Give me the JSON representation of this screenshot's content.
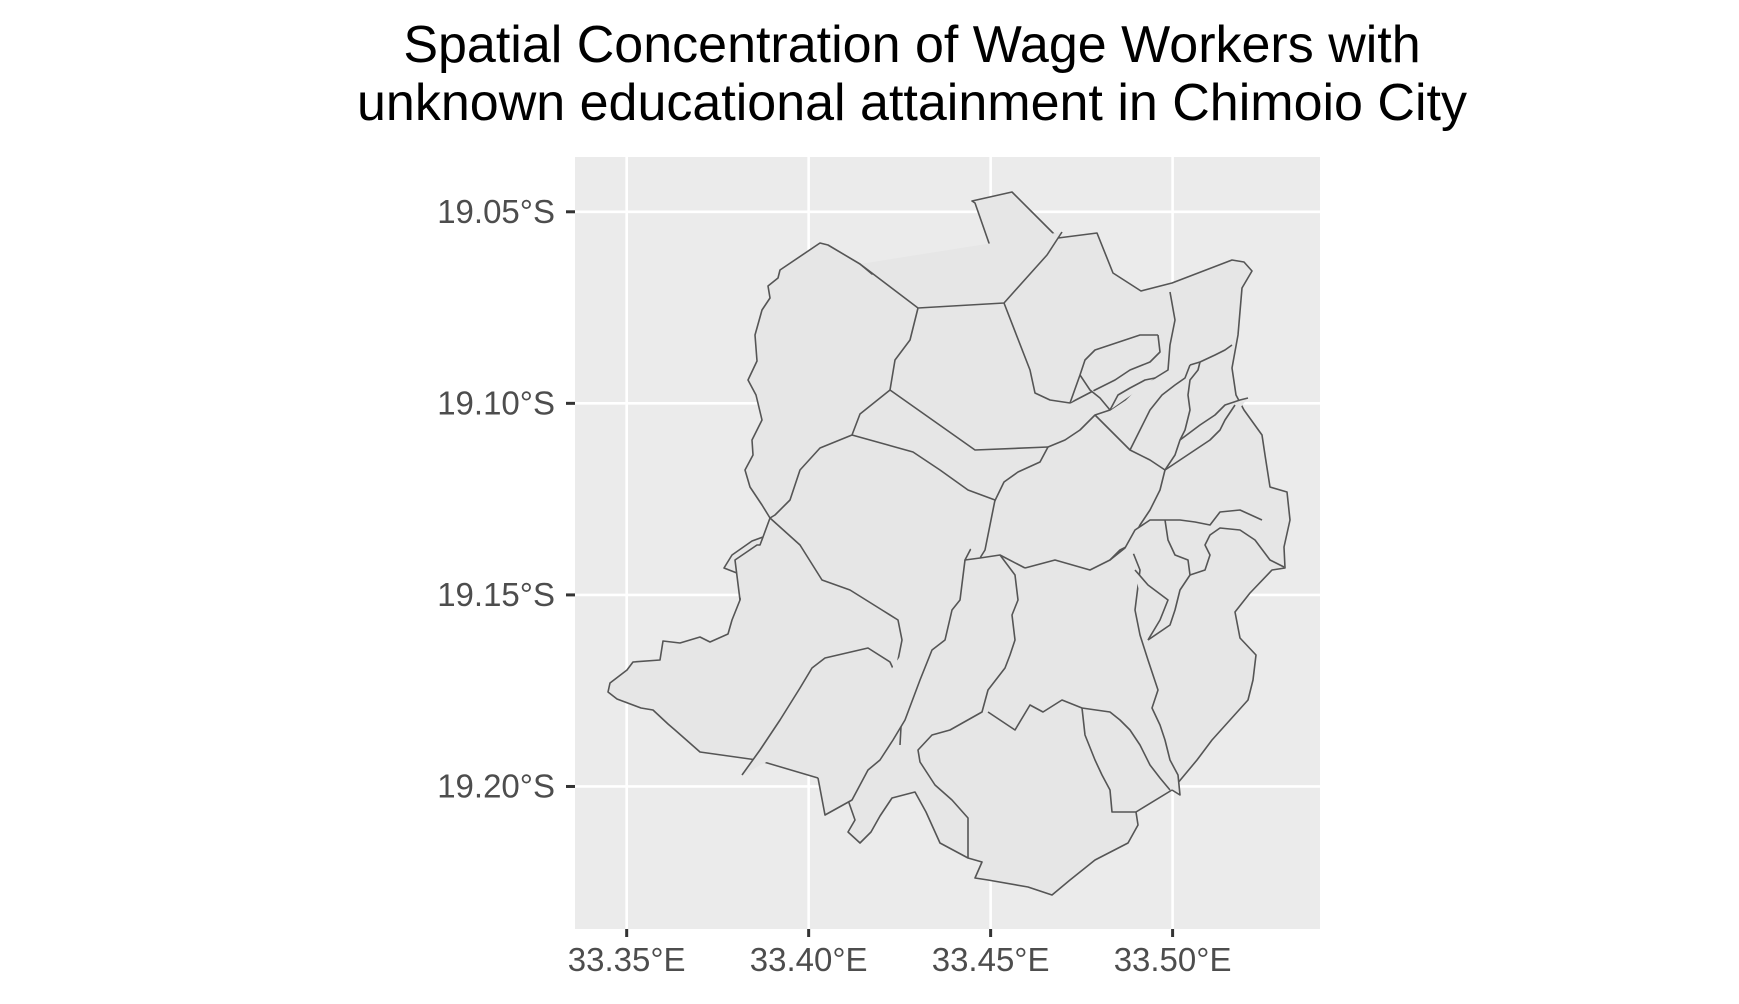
{
  "title_lines": [
    "Spatial Concentration of Wage Workers with",
    "unknown educational attainment in Chimoio City"
  ],
  "chart_data": {
    "type": "map",
    "title": "Spatial Concentration of Wage Workers with unknown educational attainment in Chimoio City",
    "x_ticks": [
      {
        "value": 33.35,
        "label": "33.35°E"
      },
      {
        "value": 33.4,
        "label": "33.40°E"
      },
      {
        "value": 33.45,
        "label": "33.45°E"
      },
      {
        "value": 33.5,
        "label": "33.50°E"
      }
    ],
    "y_ticks": [
      {
        "value": -19.05,
        "label": "19.05°S"
      },
      {
        "value": -19.1,
        "label": "19.10°S"
      },
      {
        "value": -19.15,
        "label": "19.15°S"
      },
      {
        "value": -19.2,
        "label": "19.20°S"
      }
    ],
    "xlim": [
      33.3358,
      33.5405
    ],
    "ylim": [
      -19.2372,
      -19.0357
    ],
    "grid": true,
    "colors": {
      "panel": "#ebebeb",
      "fill": "#e6e6e6",
      "border": "#555555"
    }
  }
}
